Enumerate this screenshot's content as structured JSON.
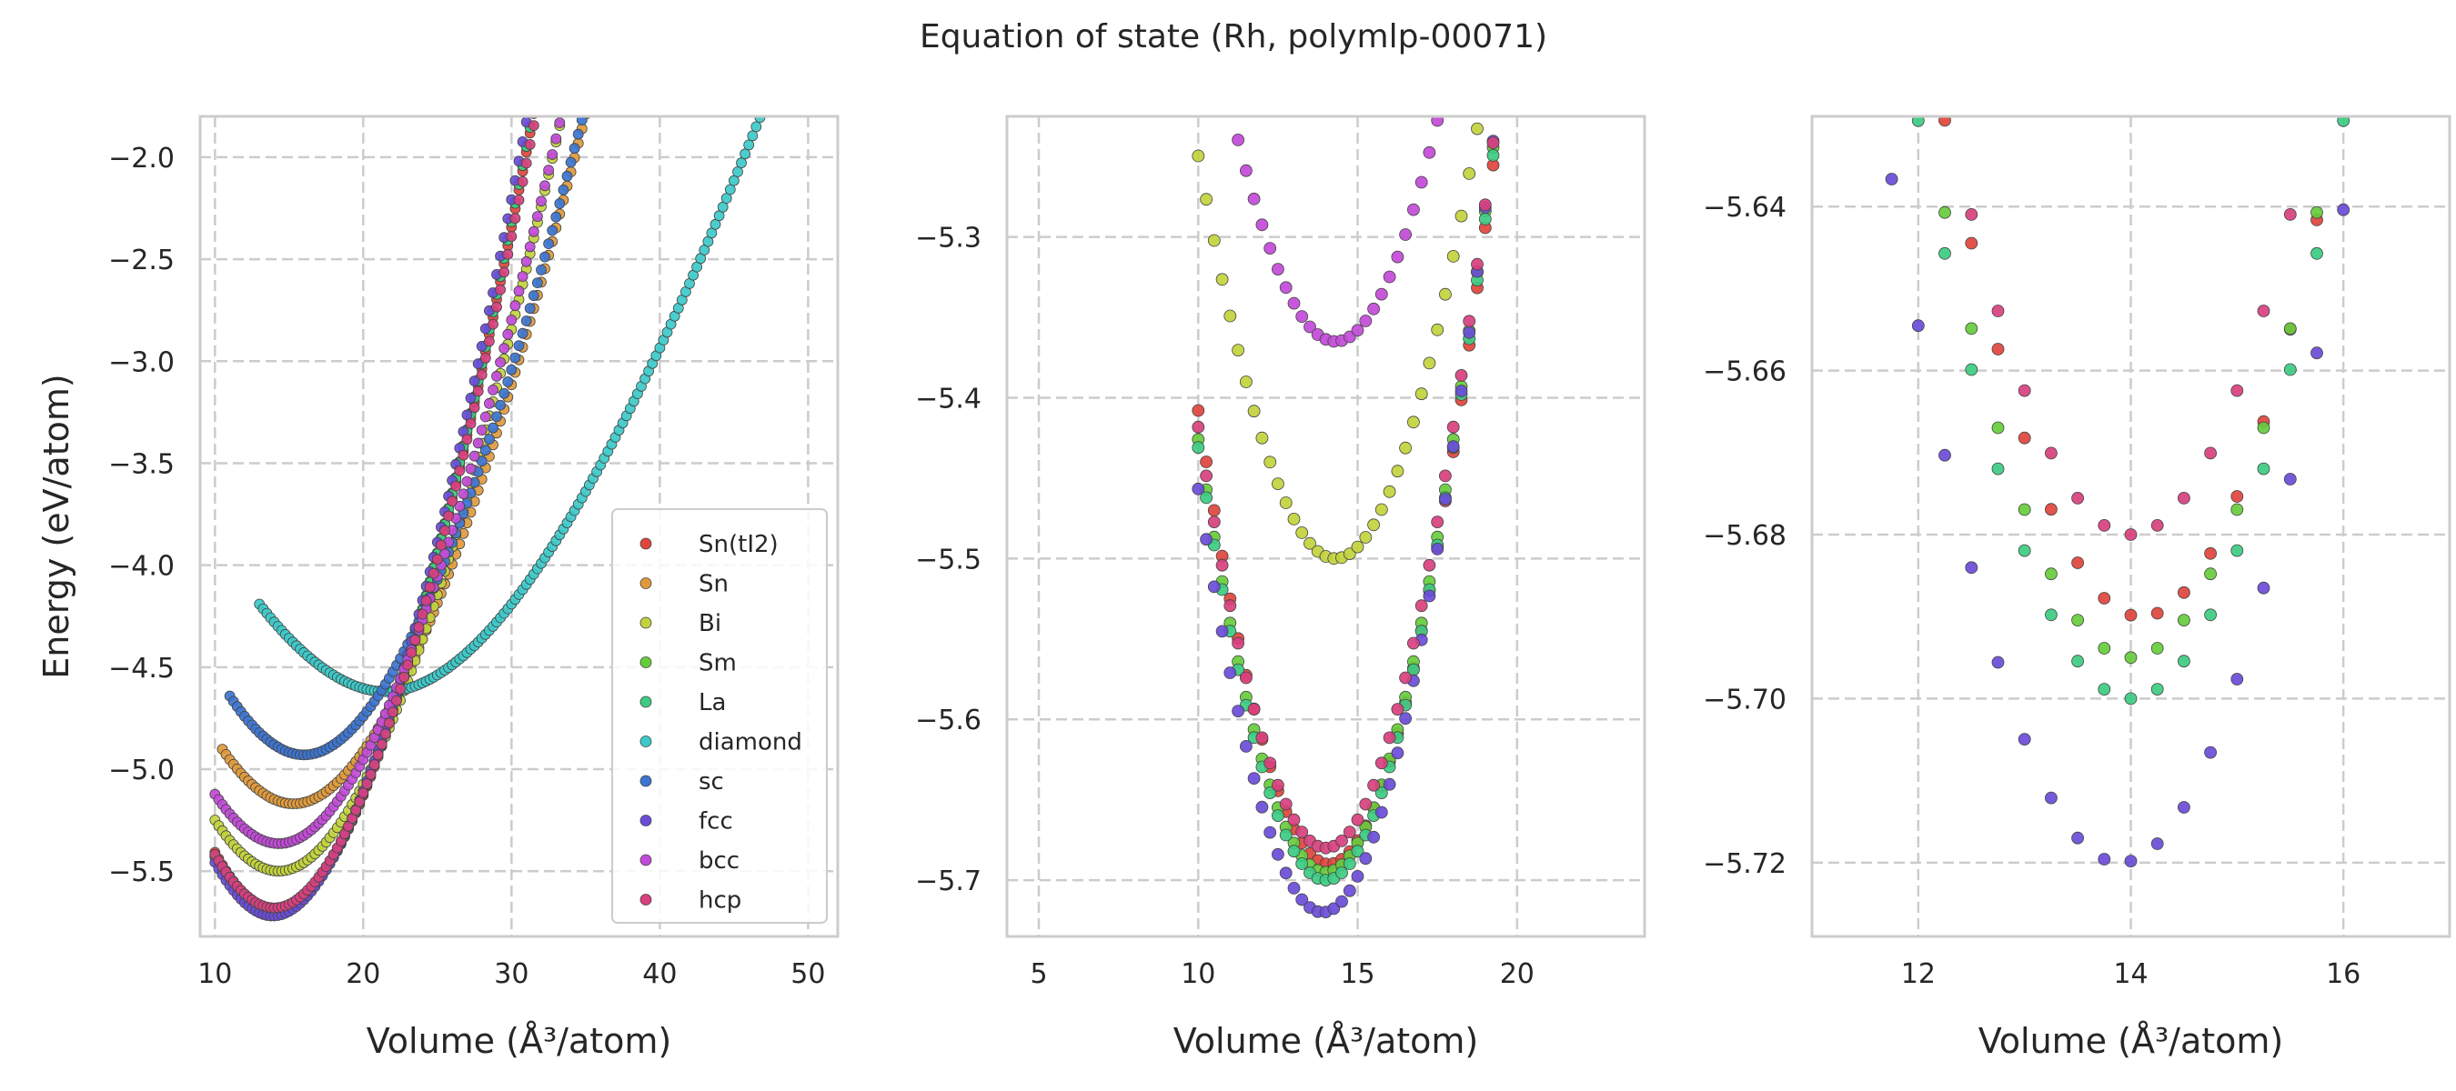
{
  "figure": {
    "suptitle": "Equation of state (Rh, polymlp-00071)"
  },
  "colors": {
    "Sn(tI2)": "#e0443c",
    "Sn": "#e09a3c",
    "Bi": "#c2d23c",
    "Sm": "#66cc3c",
    "La": "#3ccc82",
    "diamond": "#3cc9c9",
    "sc": "#3c74d0",
    "fcc": "#6a4cd8",
    "bcc": "#c24ad8",
    "hcp": "#d8407e"
  },
  "chart_data": [
    {
      "type": "scatter",
      "title": "",
      "xlabel": "Volume (Å³/atom)",
      "ylabel": "Energy (eV/atom)",
      "xlim": [
        9,
        52
      ],
      "ylim": [
        -5.82,
        -1.8
      ],
      "xticks": [
        10,
        20,
        30,
        40,
        50
      ],
      "xticklabels": [
        "10",
        "20",
        "30",
        "40",
        "50"
      ],
      "yticks": [
        -2.0,
        -2.5,
        -3.0,
        -3.5,
        -4.0,
        -4.5,
        -5.0,
        -5.5
      ],
      "yticklabels": [
        "−2.0",
        "−2.5",
        "−3.0",
        "−3.5",
        "−4.0",
        "−4.5",
        "−5.0",
        "−5.5"
      ],
      "grid": true,
      "legend": {
        "placement": "lower-right",
        "entries": [
          "Sn(tI2)",
          "Sn",
          "Bi",
          "Sm",
          "La",
          "diamond",
          "sc",
          "fcc",
          "bcc",
          "hcp"
        ]
      },
      "series": [
        {
          "name": "Sn(tI2)",
          "e0": -5.69,
          "v0": 14.1,
          "b": 0.0185,
          "vmin": 10.0,
          "vmax": 35.5
        },
        {
          "name": "Sn",
          "e0": -5.17,
          "v0": 15.3,
          "b": 0.013,
          "vmin": 10.5,
          "vmax": 39.0
        },
        {
          "name": "Bi",
          "e0": -5.5,
          "v0": 14.3,
          "b": 0.015,
          "vmin": 10.0,
          "vmax": 35.5
        },
        {
          "name": "Sm",
          "e0": -5.695,
          "v0": 14.0,
          "b": 0.0185,
          "vmin": 10.0,
          "vmax": 35.5
        },
        {
          "name": "La",
          "e0": -5.7,
          "v0": 14.0,
          "b": 0.0185,
          "vmin": 10.0,
          "vmax": 35.5
        },
        {
          "name": "diamond",
          "e0": -4.62,
          "v0": 21.5,
          "b": 0.0072,
          "vmin": 13.0,
          "vmax": 51.0
        },
        {
          "name": "sc",
          "e0": -4.93,
          "v0": 16.0,
          "b": 0.013,
          "vmin": 11.0,
          "vmax": 40.0
        },
        {
          "name": "fcc",
          "e0": -5.72,
          "v0": 13.9,
          "b": 0.019,
          "vmin": 10.0,
          "vmax": 35.5
        },
        {
          "name": "bcc",
          "e0": -5.365,
          "v0": 14.3,
          "b": 0.0145,
          "vmin": 10.0,
          "vmax": 35.0
        },
        {
          "name": "hcp",
          "e0": -5.68,
          "v0": 14.0,
          "b": 0.018,
          "vmin": 10.0,
          "vmax": 35.5
        }
      ]
    },
    {
      "type": "scatter",
      "title": "",
      "xlabel": "Volume (Å³/atom)",
      "ylabel": "",
      "xlim": [
        4,
        24
      ],
      "ylim": [
        -5.735,
        -5.225
      ],
      "xticks": [
        5,
        10,
        15,
        20
      ],
      "xticklabels": [
        "5",
        "10",
        "15",
        "20"
      ],
      "yticks": [
        -5.3,
        -5.4,
        -5.5,
        -5.6,
        -5.7
      ],
      "yticklabels": [
        "−5.3",
        "−5.4",
        "−5.5",
        "−5.6",
        "−5.7"
      ],
      "grid": true,
      "series_ref": "same as first panel, zoomed"
    },
    {
      "type": "scatter",
      "title": "",
      "xlabel": "Volume (Å³/atom)",
      "ylabel": "",
      "xlim": [
        11,
        17
      ],
      "ylim": [
        -5.729,
        -5.629
      ],
      "xticks": [
        12,
        14,
        16
      ],
      "xticklabels": [
        "12",
        "14",
        "16"
      ],
      "yticks": [
        -5.64,
        -5.66,
        -5.68,
        -5.7,
        -5.72
      ],
      "yticklabels": [
        "−5.64",
        "−5.66",
        "−5.68",
        "−5.70",
        "−5.72"
      ],
      "grid": true,
      "series_ref": "same as first panel, zoomed"
    }
  ]
}
